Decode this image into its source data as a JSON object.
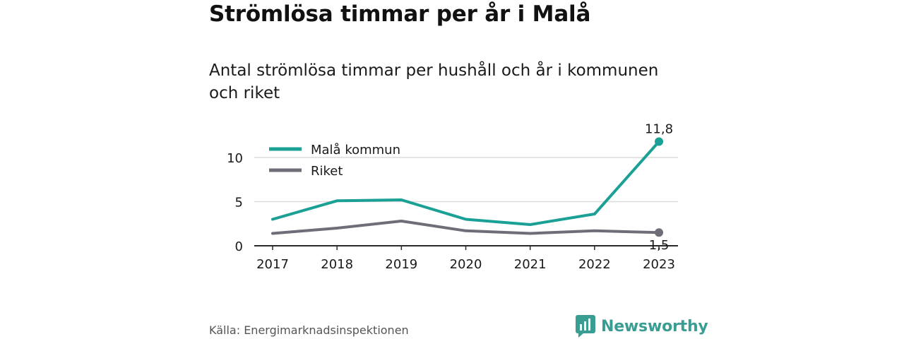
{
  "title": "Strömlösa timmar per år i Malå",
  "subtitle": "Antal strömlösa timmar per hushåll och år i kommunen och riket",
  "source": "Källa: Energimarknadsinspektionen",
  "logo": {
    "text": "Newsworthy",
    "icon": "newsworthy-logo-icon",
    "color": "#3a9d94"
  },
  "chart_data": {
    "type": "line",
    "x": [
      "2017",
      "2018",
      "2019",
      "2020",
      "2021",
      "2022",
      "2023"
    ],
    "series": [
      {
        "name": "Malå kommun",
        "color": "#1aa095",
        "values": [
          3.0,
          5.1,
          5.2,
          3.0,
          2.4,
          3.6,
          11.8
        ]
      },
      {
        "name": "Riket",
        "color": "#6e6e78",
        "values": [
          1.4,
          2.0,
          2.8,
          1.7,
          1.4,
          1.7,
          1.5
        ]
      }
    ],
    "yticks": [
      0,
      5,
      10
    ],
    "yticks_labels": [
      "0",
      "5",
      "10"
    ],
    "ylim": [
      0,
      12
    ],
    "grid": true,
    "legend": "top-left",
    "end_labels": [
      "11,8",
      "1,5"
    ]
  }
}
